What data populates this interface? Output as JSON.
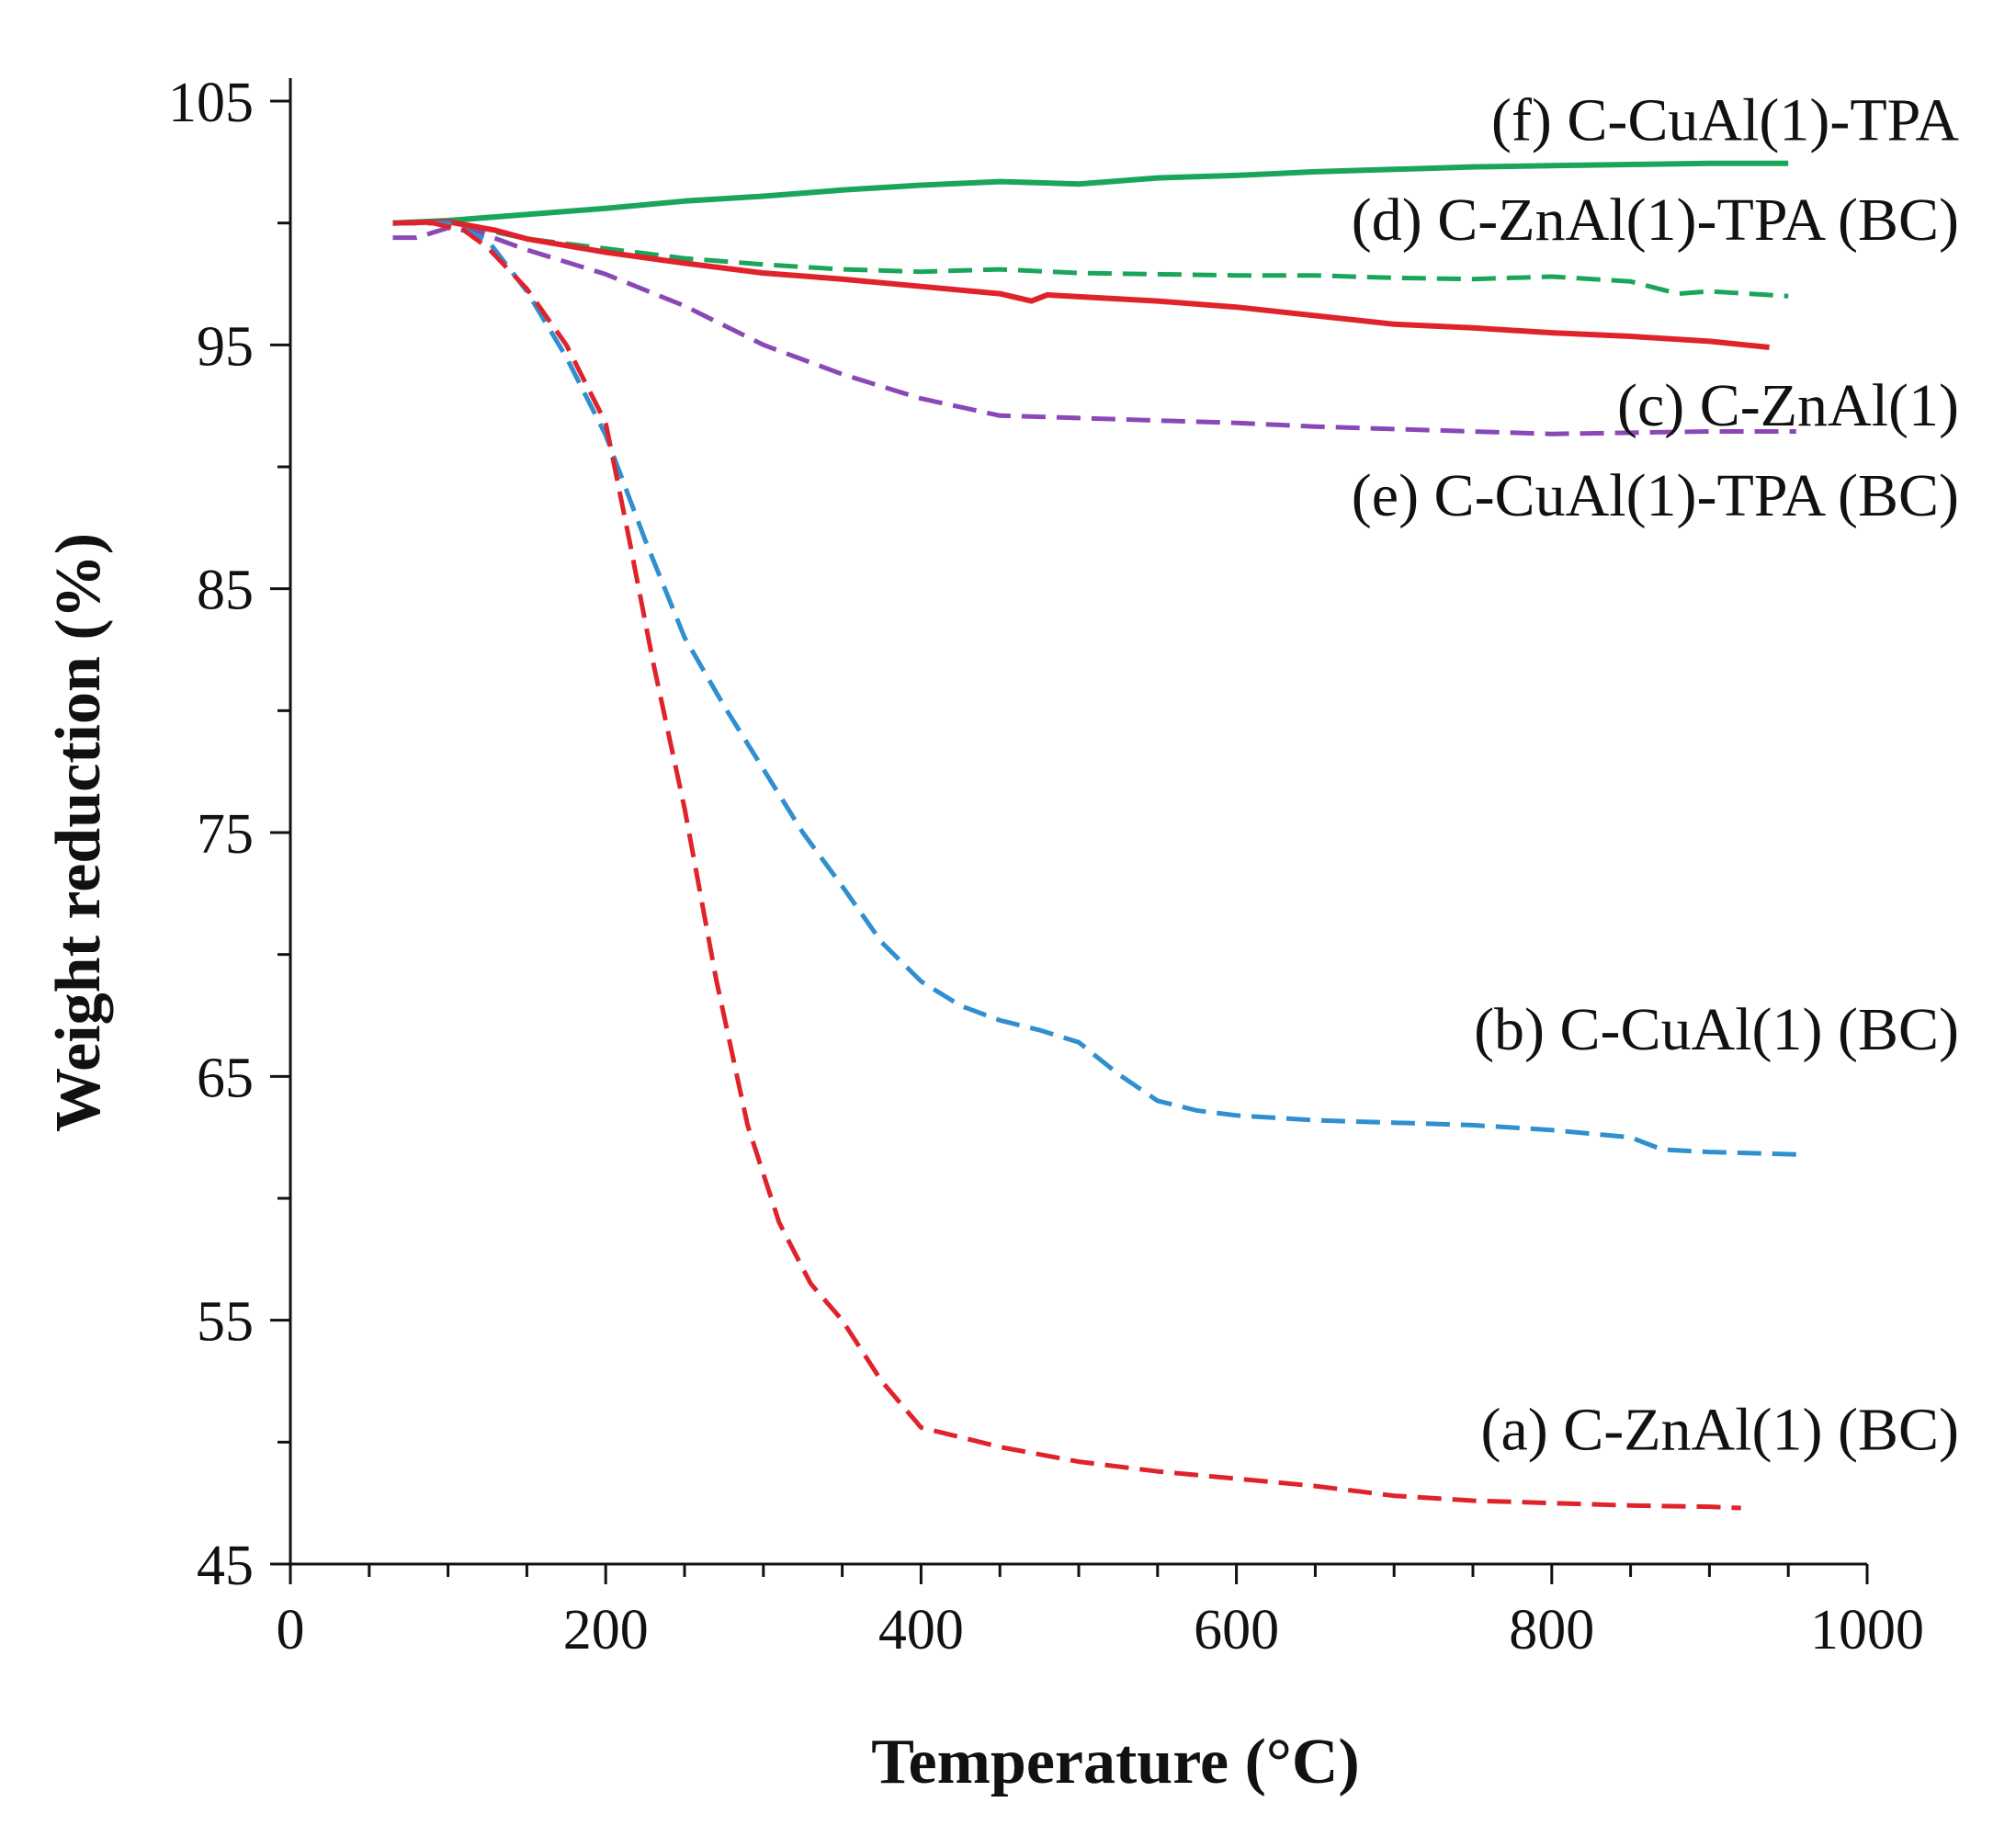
{
  "chart_data": {
    "type": "line",
    "title": "",
    "xlabel": "Temperature (°C)",
    "ylabel": "Weight reduction (%)",
    "xlim": [
      0,
      1000
    ],
    "ylim": [
      45,
      105
    ],
    "xticks": [
      0,
      200,
      400,
      600,
      800,
      1000
    ],
    "yticks": [
      45,
      55,
      65,
      75,
      85,
      95,
      105
    ],
    "xtick_labels": [
      "0",
      "200",
      "400",
      "600",
      "800",
      "1000"
    ],
    "ytick_labels": [
      "45",
      "55",
      "65",
      "75",
      "85",
      "95",
      "105"
    ],
    "x_minor_step": 50,
    "y_minor_step": 5,
    "grid": false,
    "series": [
      {
        "name": "(f) C-CuAl(1)-TPA",
        "color": "#1aa65a",
        "dash": "solid",
        "label_anchor": [
          1000,
          103.4
        ],
        "points": [
          [
            65,
            100
          ],
          [
            100,
            100.1
          ],
          [
            150,
            100.35
          ],
          [
            200,
            100.6
          ],
          [
            250,
            100.9
          ],
          [
            300,
            101.1
          ],
          [
            350,
            101.35
          ],
          [
            400,
            101.55
          ],
          [
            450,
            101.7
          ],
          [
            500,
            101.6
          ],
          [
            550,
            101.85
          ],
          [
            600,
            101.95
          ],
          [
            650,
            102.1
          ],
          [
            700,
            102.2
          ],
          [
            750,
            102.3
          ],
          [
            800,
            102.35
          ],
          [
            850,
            102.4
          ],
          [
            900,
            102.45
          ],
          [
            950,
            102.45
          ]
        ]
      },
      {
        "name": "(d) C-ZnAl(1)-TPA (BC)",
        "color": "#1aa65a",
        "dash": "dashed",
        "label_anchor": [
          1000,
          99.3
        ],
        "points": [
          [
            65,
            100
          ],
          [
            100,
            100
          ],
          [
            125,
            99.7
          ],
          [
            150,
            99.35
          ],
          [
            200,
            98.95
          ],
          [
            250,
            98.55
          ],
          [
            300,
            98.3
          ],
          [
            350,
            98.1
          ],
          [
            400,
            98.0
          ],
          [
            450,
            98.1
          ],
          [
            500,
            97.95
          ],
          [
            550,
            97.9
          ],
          [
            600,
            97.85
          ],
          [
            650,
            97.85
          ],
          [
            700,
            97.75
          ],
          [
            750,
            97.7
          ],
          [
            800,
            97.8
          ],
          [
            850,
            97.6
          ],
          [
            880,
            97.1
          ],
          [
            900,
            97.2
          ],
          [
            950,
            97.0
          ]
        ]
      },
      {
        "name": "(c) C-ZnAl(1)",
        "color": "#e0232b",
        "dash": "solid",
        "label_anchor": [
          1000,
          91.7
        ],
        "points": [
          [
            65,
            100
          ],
          [
            100,
            100.05
          ],
          [
            130,
            99.7
          ],
          [
            150,
            99.35
          ],
          [
            200,
            98.8
          ],
          [
            250,
            98.35
          ],
          [
            300,
            97.95
          ],
          [
            350,
            97.7
          ],
          [
            400,
            97.4
          ],
          [
            450,
            97.1
          ],
          [
            470,
            96.8
          ],
          [
            480,
            97.05
          ],
          [
            550,
            96.8
          ],
          [
            600,
            96.55
          ],
          [
            650,
            96.2
          ],
          [
            700,
            95.85
          ],
          [
            750,
            95.7
          ],
          [
            800,
            95.5
          ],
          [
            850,
            95.35
          ],
          [
            900,
            95.15
          ],
          [
            938,
            94.9
          ]
        ]
      },
      {
        "name": "(e) C-CuAl(1)-TPA (BC)",
        "color": "#8a48b6",
        "dash": "dashed",
        "label_anchor": [
          1000,
          88.0
        ],
        "points": [
          [
            65,
            99.4
          ],
          [
            80,
            99.4
          ],
          [
            100,
            99.8
          ],
          [
            120,
            99.6
          ],
          [
            150,
            98.9
          ],
          [
            200,
            97.9
          ],
          [
            250,
            96.6
          ],
          [
            300,
            95.0
          ],
          [
            350,
            93.8
          ],
          [
            400,
            92.8
          ],
          [
            450,
            92.1
          ],
          [
            500,
            92.0
          ],
          [
            550,
            91.9
          ],
          [
            600,
            91.8
          ],
          [
            650,
            91.65
          ],
          [
            700,
            91.55
          ],
          [
            750,
            91.45
          ],
          [
            800,
            91.35
          ],
          [
            850,
            91.4
          ],
          [
            900,
            91.45
          ],
          [
            955,
            91.45
          ]
        ]
      },
      {
        "name": "(b) C-CuAl(1) (BC)",
        "color": "#2f8fd0",
        "dash": "dashed",
        "label_anchor": [
          1000,
          66.1
        ],
        "points": [
          [
            65,
            100
          ],
          [
            100,
            100
          ],
          [
            125,
            99.3
          ],
          [
            150,
            97.2
          ],
          [
            175,
            94.5
          ],
          [
            200,
            91.3
          ],
          [
            225,
            87.0
          ],
          [
            250,
            83.0
          ],
          [
            275,
            80.2
          ],
          [
            300,
            77.6
          ],
          [
            325,
            75.0
          ],
          [
            350,
            72.8
          ],
          [
            375,
            70.5
          ],
          [
            400,
            68.9
          ],
          [
            425,
            67.9
          ],
          [
            450,
            67.3
          ],
          [
            475,
            66.9
          ],
          [
            500,
            66.4
          ],
          [
            525,
            65.1
          ],
          [
            550,
            64.0
          ],
          [
            575,
            63.6
          ],
          [
            600,
            63.4
          ],
          [
            650,
            63.2
          ],
          [
            700,
            63.1
          ],
          [
            750,
            63.0
          ],
          [
            800,
            62.8
          ],
          [
            850,
            62.5
          ],
          [
            870,
            62.0
          ],
          [
            900,
            61.9
          ],
          [
            955,
            61.8
          ]
        ]
      },
      {
        "name": "(a) C-ZnAl(1) (BC)",
        "color": "#e0232b",
        "dash": "dashed",
        "label_anchor": [
          1000,
          49.7
        ],
        "points": [
          [
            65,
            100
          ],
          [
            90,
            100
          ],
          [
            110,
            99.7
          ],
          [
            125,
            99.0
          ],
          [
            150,
            97.3
          ],
          [
            175,
            95.0
          ],
          [
            200,
            91.8
          ],
          [
            215,
            87.0
          ],
          [
            230,
            82.0
          ],
          [
            250,
            76.0
          ],
          [
            270,
            69.0
          ],
          [
            290,
            63.0
          ],
          [
            310,
            59.0
          ],
          [
            330,
            56.5
          ],
          [
            350,
            55.0
          ],
          [
            375,
            52.5
          ],
          [
            400,
            50.6
          ],
          [
            425,
            50.2
          ],
          [
            450,
            49.8
          ],
          [
            500,
            49.2
          ],
          [
            550,
            48.8
          ],
          [
            600,
            48.5
          ],
          [
            650,
            48.2
          ],
          [
            700,
            47.8
          ],
          [
            750,
            47.6
          ],
          [
            800,
            47.5
          ],
          [
            850,
            47.4
          ],
          [
            900,
            47.35
          ],
          [
            920,
            47.3
          ]
        ]
      }
    ]
  }
}
